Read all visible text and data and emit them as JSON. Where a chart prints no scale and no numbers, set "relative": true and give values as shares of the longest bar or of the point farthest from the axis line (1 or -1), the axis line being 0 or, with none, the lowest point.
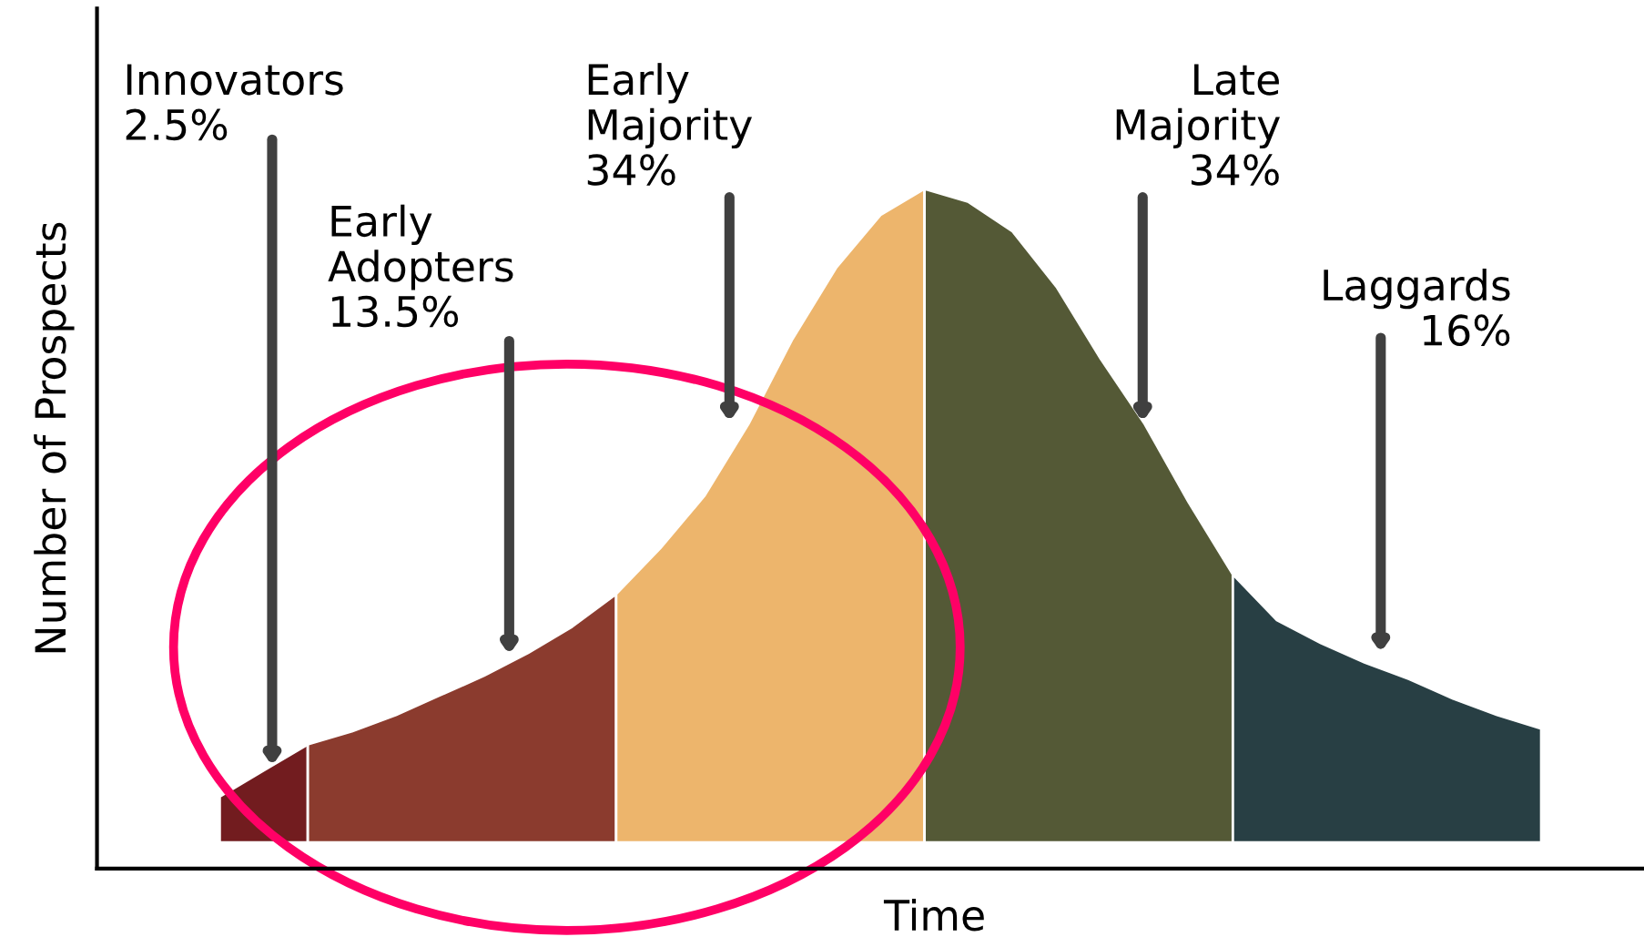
{
  "chart_data": {
    "type": "area",
    "relative": true,
    "xlabel": "Time",
    "ylabel": "Number of Prospects",
    "legend": false,
    "categories": [
      null,
      null,
      null,
      null,
      null,
      null,
      null,
      null,
      null,
      null,
      null,
      null,
      null,
      null,
      null,
      null,
      null,
      null,
      null,
      null,
      null,
      null,
      null,
      null,
      null,
      null,
      null,
      null,
      null,
      null,
      null
    ],
    "series": [
      {
        "name": "Innovators\n2.5%",
        "color": "#721c1f",
        "values": [
          0.07,
          0.11,
          0.15,
          null,
          null,
          null,
          null,
          null,
          null,
          null,
          null,
          null,
          null,
          null,
          null,
          null,
          null,
          null,
          null,
          null,
          null,
          null,
          null,
          null,
          null,
          null,
          null,
          null,
          null,
          null,
          null
        ]
      },
      {
        "name": "Early\nAdopters\n13.5%",
        "color": "#8b3b2e",
        "values": [
          null,
          null,
          0.15,
          0.17,
          0.195,
          0.225,
          0.255,
          0.29,
          0.33,
          0.38,
          null,
          null,
          null,
          null,
          null,
          null,
          null,
          null,
          null,
          null,
          null,
          null,
          null,
          null,
          null,
          null,
          null,
          null,
          null,
          null,
          null
        ]
      },
      {
        "name": "Early\nMajority\n34%",
        "color": "#edb56c",
        "values": [
          null,
          null,
          null,
          null,
          null,
          null,
          null,
          null,
          null,
          0.38,
          0.45,
          0.53,
          0.64,
          0.77,
          0.88,
          0.96,
          1.0,
          null,
          null,
          null,
          null,
          null,
          null,
          null,
          null,
          null,
          null,
          null,
          null,
          null,
          null
        ]
      },
      {
        "name": "Late\nMajority\n34%",
        "color": "#545936",
        "values": [
          null,
          null,
          null,
          null,
          null,
          null,
          null,
          null,
          null,
          null,
          null,
          null,
          null,
          null,
          null,
          null,
          1.0,
          0.98,
          0.935,
          0.85,
          0.74,
          0.64,
          0.52,
          0.41,
          null,
          null,
          null,
          null,
          null,
          null,
          null
        ]
      },
      {
        "name": "Laggards\n16%",
        "color": "#283f44",
        "values": [
          null,
          null,
          null,
          null,
          null,
          null,
          null,
          null,
          null,
          null,
          null,
          null,
          null,
          null,
          null,
          null,
          null,
          null,
          null,
          null,
          null,
          null,
          null,
          0.41,
          0.34,
          0.305,
          0.275,
          0.25,
          0.22,
          0.195,
          0.174
        ]
      }
    ]
  }
}
